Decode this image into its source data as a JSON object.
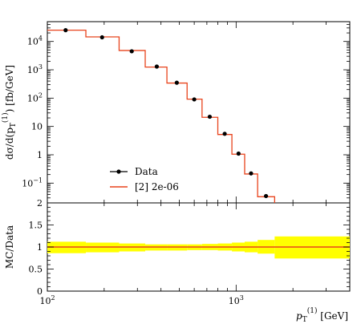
{
  "chart_data": [
    {
      "type": "line",
      "subtype": "step-histogram-with-points",
      "x_scale": "log",
      "y_scale": "log",
      "xlim": [
        100,
        4000
      ],
      "ylim": [
        0.02,
        50000
      ],
      "ylabel": "dσ/d(p_T^(1)) [fb/GeV]",
      "bin_edges": [
        100,
        160,
        240,
        330,
        430,
        550,
        660,
        800,
        950,
        1110,
        1300,
        1600,
        4000
      ],
      "series": [
        {
          "name": "Data",
          "style": "points",
          "color": "#000000",
          "x": [
            125,
            195,
            280,
            380,
            485,
            600,
            725,
            870,
            1030,
            1200,
            1440
          ],
          "y": [
            25000,
            14000,
            4500,
            1300,
            350,
            90,
            22,
            5.5,
            1.1,
            0.22,
            0.035
          ]
        },
        {
          "name": "[2] 2e-06",
          "style": "step",
          "color": "#e8431c",
          "values": [
            25000,
            14500,
            4800,
            1250,
            340,
            92,
            21,
            5.2,
            1.05,
            0.21,
            0.033,
            0.0001
          ]
        }
      ],
      "y_ticks": [
        {
          "v": 10000,
          "label": "10",
          "exp": "4"
        },
        {
          "v": 1000,
          "label": "10",
          "exp": "3"
        },
        {
          "v": 100,
          "label": "10",
          "exp": "2"
        },
        {
          "v": 10,
          "label": "10",
          "exp": ""
        },
        {
          "v": 1,
          "label": "1",
          "exp": ""
        },
        {
          "v": 0.1,
          "label": "10",
          "exp": "−1"
        }
      ],
      "extra_y_label": "2",
      "legend": {
        "position": "bottom-left"
      }
    },
    {
      "type": "line",
      "subtype": "ratio",
      "x_scale": "log",
      "xlim": [
        100,
        4000
      ],
      "ylim": [
        0,
        2
      ],
      "ylabel": "MC/Data",
      "xlabel": "p_T^(1) [GeV]",
      "y_ticks": [
        "0",
        "0.5",
        "1",
        "1.5"
      ],
      "x_ticks": [
        {
          "v": 100,
          "label": "10",
          "exp": "2"
        },
        {
          "v": 1000,
          "label": "10",
          "exp": "3"
        }
      ],
      "band_color": "#ffff00",
      "band": {
        "edges": [
          100,
          160,
          240,
          330,
          430,
          550,
          660,
          800,
          950,
          1110,
          1300,
          1600,
          4000
        ],
        "low": [
          0.86,
          0.88,
          0.9,
          0.92,
          0.92,
          0.93,
          0.93,
          0.92,
          0.9,
          0.88,
          0.85,
          0.74
        ],
        "high": [
          1.12,
          1.1,
          1.08,
          1.06,
          1.06,
          1.06,
          1.07,
          1.08,
          1.1,
          1.12,
          1.16,
          1.24
        ]
      },
      "ratio_line": {
        "value": 1.0,
        "color": "#e8431c"
      }
    }
  ],
  "legend_labels": {
    "data": "Data",
    "mc": "[2] 2e-06"
  },
  "axis_text": {
    "ylabel_top": "dσ/d(p",
    "ylabel_top_sub": "T",
    "ylabel_top_sup": "(1)",
    "ylabel_top_tail": ") [fb/GeV]",
    "ylabel_bottom": "MC/Data",
    "xlabel_main": "p",
    "xlabel_sub": "T",
    "xlabel_sup": "(1)",
    "xlabel_tail": " [GeV]"
  }
}
